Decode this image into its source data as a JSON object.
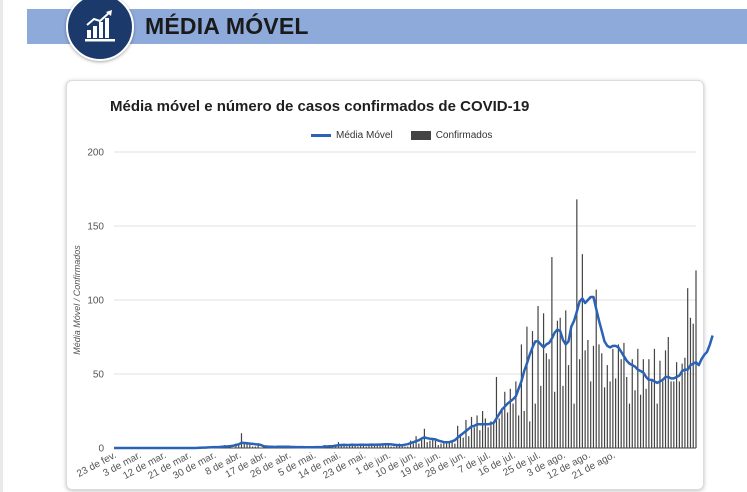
{
  "header": {
    "title": "MÉDIA MÓVEL",
    "icon": "bar-chart-icon",
    "band_color": "#8eaadb",
    "circle_color": "#1b3a6b"
  },
  "chart_data": {
    "type": "bar",
    "title": "Média móvel e número de casos confirmados de COVID-19",
    "ylabel": "Média Móvel / Confirmados",
    "xlabel": "",
    "ylim": [
      0,
      200
    ],
    "yticks": [
      "0",
      "50",
      "100",
      "150",
      "200"
    ],
    "xticks": [
      "23 de fev.",
      "3 de mar.",
      "12 de mar.",
      "21 de mar.",
      "30 de mar.",
      "8 de abr.",
      "17 de abr.",
      "26 de abr.",
      "5 de mai.",
      "14 de mai.",
      "23 de mai.",
      "1 de jun.",
      "10 de jun.",
      "19 de jun.",
      "28 de jun.",
      "7 de jul.",
      "16 de jul.",
      "25 de jul.",
      "3 de ago.",
      "12 de ago.",
      "21 de ago."
    ],
    "legend": [
      "Média Móvel",
      "Confirmados"
    ],
    "legend_position": "top",
    "grid": true,
    "series": [
      {
        "name": "Confirmados",
        "type": "bar",
        "color": "#444444",
        "values": [
          0,
          0,
          0,
          0,
          0,
          0,
          0,
          0,
          0,
          0,
          0,
          0,
          0,
          0,
          0,
          0,
          0,
          0,
          0,
          0,
          0,
          0,
          0,
          0,
          0,
          0,
          0,
          0,
          0,
          0,
          0,
          1,
          1,
          0,
          0,
          0,
          1,
          1,
          0,
          1,
          2,
          1,
          1,
          0,
          3,
          2,
          10,
          4,
          3,
          2,
          1,
          1,
          2,
          0,
          1,
          1,
          1,
          0,
          0,
          1,
          1,
          0,
          1,
          1,
          0,
          1,
          0,
          1,
          0,
          0,
          1,
          0,
          0,
          1,
          0,
          0,
          2,
          1,
          2,
          0,
          2,
          4,
          2,
          3,
          1,
          2,
          3,
          2,
          1,
          2,
          3,
          1,
          2,
          3,
          2,
          2,
          2,
          3,
          3,
          2,
          1,
          1,
          2,
          3,
          2,
          1,
          1,
          5,
          3,
          8,
          3,
          7,
          13,
          4,
          5,
          6,
          5,
          2,
          3,
          4,
          3,
          4,
          5,
          3,
          15,
          9,
          7,
          19,
          8,
          21,
          14,
          22,
          12,
          25,
          20,
          14,
          18,
          17,
          48,
          20,
          27,
          38,
          24,
          40,
          30,
          45,
          22,
          70,
          25,
          82,
          18,
          79,
          30,
          96,
          42,
          91,
          64,
          60,
          129,
          38,
          86,
          88,
          42,
          93,
          56,
          83,
          30,
          168,
          60,
          131,
          66,
          73,
          45,
          69,
          107,
          70,
          64,
          41,
          56,
          45,
          67,
          47,
          70,
          60,
          71,
          48,
          30,
          60,
          39,
          67,
          36,
          60,
          40,
          60,
          45,
          67,
          30,
          59,
          45,
          66,
          75,
          45,
          45,
          58,
          45,
          57,
          61,
          108,
          88,
          84,
          120
        ]
      },
      {
        "name": "Média Móvel",
        "type": "line",
        "color": "#2a62b5",
        "values": [
          0,
          0,
          0,
          0,
          0,
          0,
          0,
          0,
          0,
          0,
          0,
          0,
          0,
          0,
          0,
          0,
          0,
          0,
          0,
          0,
          0,
          0,
          0,
          0,
          0,
          0,
          0,
          0,
          0,
          0,
          0.1,
          0.2,
          0.3,
          0.3,
          0.4,
          0.5,
          0.6,
          0.6,
          0.7,
          0.8,
          1,
          1.1,
          1.3,
          1.5,
          2,
          2.5,
          3.5,
          3.4,
          3.2,
          3,
          2.8,
          2.6,
          2.4,
          2,
          1.2,
          1,
          0.9,
          0.8,
          0.7,
          0.8,
          0.8,
          0.8,
          0.9,
          0.8,
          0.7,
          0.7,
          0.6,
          0.6,
          0.6,
          0.5,
          0.5,
          0.5,
          0.5,
          0.6,
          0.6,
          0.7,
          1,
          1.1,
          1.2,
          1.3,
          1.6,
          1.9,
          2,
          2.1,
          2,
          2.1,
          2.2,
          2.1,
          2.1,
          2.2,
          2.2,
          2.1,
          2.2,
          2.3,
          2.2,
          2.3,
          2.3,
          2.4,
          2.6,
          2.5,
          2.4,
          2.2,
          2.0,
          1.9,
          1.9,
          2.2,
          2.6,
          3.3,
          3.9,
          4.6,
          5.3,
          6.4,
          7.2,
          6.6,
          6.3,
          6.1,
          5.8,
          5,
          4.5,
          4,
          3.9,
          4,
          4.5,
          5.3,
          7,
          8.5,
          10,
          11.5,
          13,
          14.5,
          15,
          16,
          16,
          16,
          16,
          16,
          16.5,
          17,
          20,
          23,
          26,
          28,
          30,
          31.5,
          33,
          35,
          40,
          45,
          52,
          57,
          63,
          68,
          72,
          72,
          70,
          68,
          70,
          71,
          74,
          78,
          80,
          79,
          73,
          70,
          72,
          82,
          86,
          92,
          99,
          101,
          98,
          100,
          102,
          102,
          94,
          86,
          79,
          72,
          69,
          68,
          69,
          69,
          68,
          65,
          62,
          59,
          57,
          56,
          55,
          53,
          52,
          51,
          48,
          46,
          46,
          45,
          44,
          45,
          46,
          48,
          48,
          47,
          47,
          48,
          49,
          52,
          53,
          53,
          56,
          57,
          58,
          56,
          60,
          63,
          65,
          70,
          76
        ]
      }
    ]
  }
}
